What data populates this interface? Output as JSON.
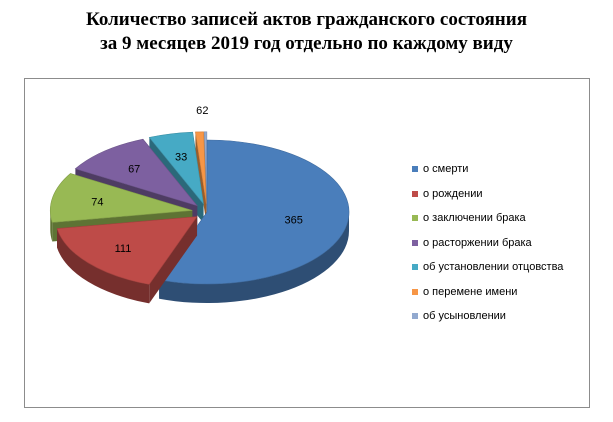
{
  "title_line1": "Количество записей актов гражданского состояния",
  "title_line2": "за 9 месяцев 2019 год отдельно по каждому виду",
  "chart_data": {
    "type": "pie",
    "style": "3d-exploded",
    "legend_position": "right",
    "categories": [
      "о смерти",
      "о рождении",
      "о заключении брака",
      "о расторжении брака",
      "об установлении отцовства",
      "о перемене имени",
      "об усыновлении"
    ],
    "values": [
      365,
      111,
      74,
      67,
      33,
      6,
      2
    ],
    "data_labels": [
      "365",
      "111",
      "74",
      "67",
      "33",
      "6",
      "2"
    ],
    "colors": [
      "#4a7ebb",
      "#be4b48",
      "#98b954",
      "#7d60a0",
      "#46aac5",
      "#f79646",
      "#92a9cf"
    ]
  }
}
